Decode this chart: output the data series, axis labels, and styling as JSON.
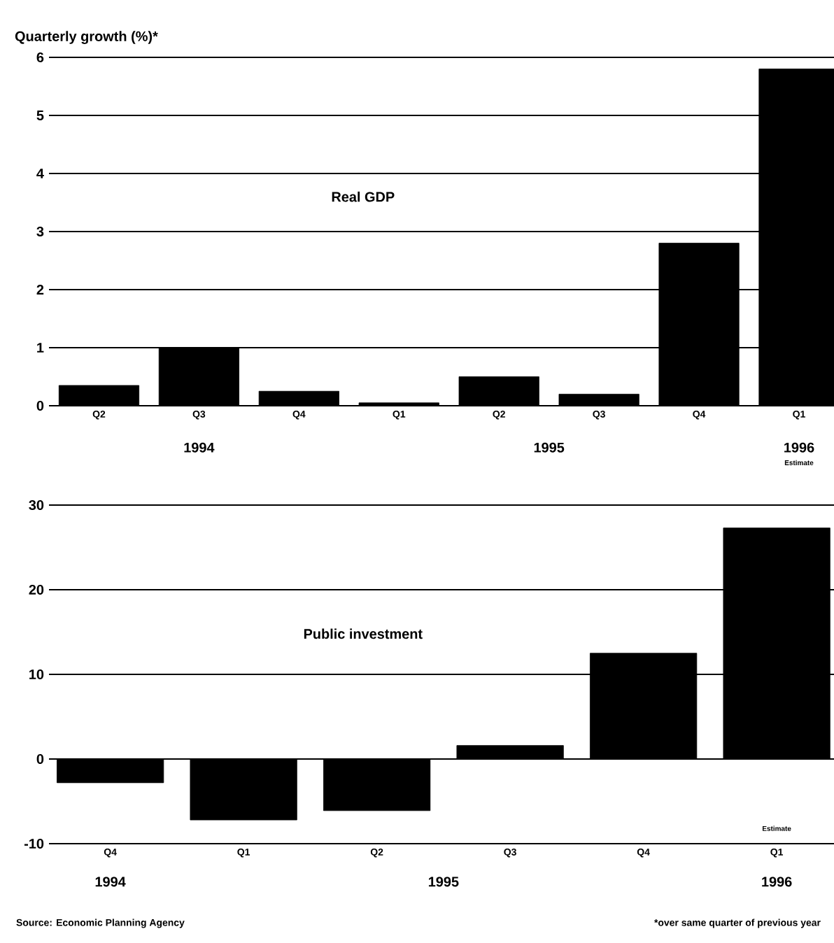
{
  "chart_data": [
    {
      "type": "bar",
      "title": "Real GDP",
      "ylabel": "Quarterly growth (%)*",
      "categories": [
        "Q2",
        "Q3",
        "Q4",
        "Q1",
        "Q2",
        "Q3",
        "Q4",
        "Q1"
      ],
      "values": [
        0.35,
        1.0,
        0.25,
        0.05,
        0.5,
        0.2,
        2.8,
        5.8
      ],
      "color": "#000000",
      "ylim": [
        0,
        6
      ],
      "yticks": [
        0,
        1,
        2,
        3,
        4,
        5,
        6
      ],
      "grid": "y",
      "annotations": [
        "1994",
        "1995",
        "1996",
        "Estimate"
      ]
    },
    {
      "type": "bar",
      "title": "Public investment",
      "categories": [
        "Q4",
        "Q1",
        "Q2",
        "Q3",
        "Q4",
        "Q1"
      ],
      "values": [
        -2.8,
        -7.2,
        -6.1,
        1.6,
        12.5,
        27.3
      ],
      "color": "#000000",
      "ylim": [
        -10,
        30
      ],
      "yticks": [
        -10,
        0,
        10,
        20,
        30
      ],
      "grid": "y",
      "annotations": [
        "1994",
        "1995",
        "1996",
        "Estimate",
        "Source: Economic Planning Agency",
        "*over same quarter of previous year"
      ]
    }
  ]
}
